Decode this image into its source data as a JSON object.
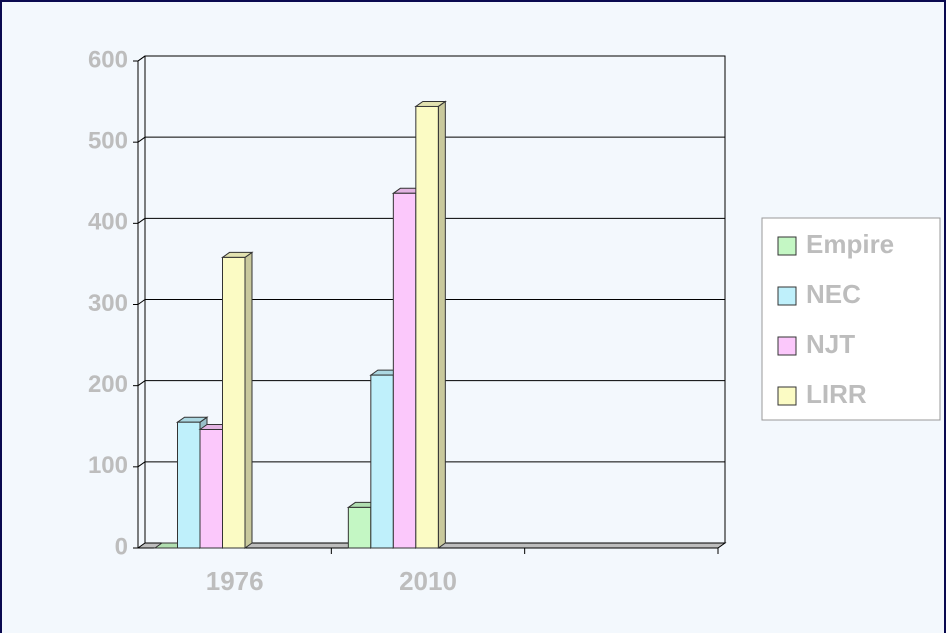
{
  "chart_data": {
    "type": "bar",
    "categories": [
      "1976",
      "2010",
      null
    ],
    "series": [
      {
        "name": "Empire",
        "color": "#c4f7c4",
        "values": [
          0,
          50,
          null
        ]
      },
      {
        "name": "NEC",
        "color": "#bff0fb",
        "values": [
          155,
          213,
          null
        ]
      },
      {
        "name": "NJT",
        "color": "#fbc8fb",
        "values": [
          146,
          437,
          null
        ]
      },
      {
        "name": "LIRR",
        "color": "#fbfbc4",
        "values": [
          358,
          544,
          null
        ]
      }
    ],
    "ylim": [
      0,
      600
    ],
    "yticks": [
      0,
      100,
      200,
      300,
      400,
      500,
      600
    ],
    "grid": true,
    "legend": "right"
  }
}
